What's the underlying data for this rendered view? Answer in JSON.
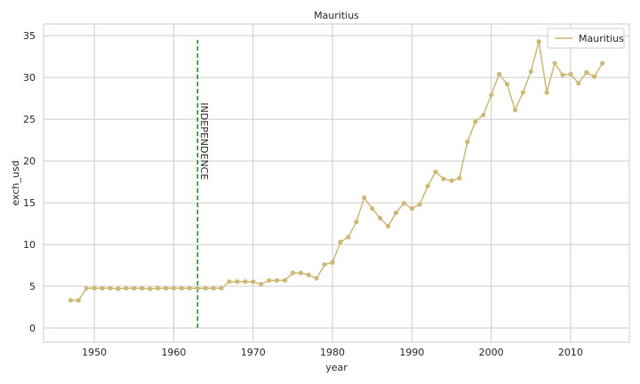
{
  "chart_data": {
    "type": "line",
    "title": "Mauritius",
    "xlabel": "year",
    "ylabel": "exch_usd",
    "xlim": [
      1943.6,
      2017.4
    ],
    "ylim": [
      -1.7,
      36.4
    ],
    "xticks": [
      1950,
      1960,
      1970,
      1980,
      1990,
      2000,
      2010
    ],
    "yticks": [
      0,
      5,
      10,
      15,
      20,
      25,
      30,
      35
    ],
    "grid": true,
    "legend": "top-right",
    "series": [
      {
        "name": "Mauritius",
        "color": "#ccb974",
        "marker": "circle",
        "x": [
          1947,
          1948,
          1949,
          1950,
          1951,
          1952,
          1953,
          1954,
          1955,
          1956,
          1957,
          1958,
          1959,
          1960,
          1961,
          1962,
          1963,
          1964,
          1965,
          1966,
          1967,
          1968,
          1969,
          1970,
          1971,
          1972,
          1973,
          1974,
          1975,
          1976,
          1977,
          1978,
          1979,
          1980,
          1981,
          1982,
          1983,
          1984,
          1985,
          1986,
          1987,
          1988,
          1989,
          1990,
          1991,
          1992,
          1993,
          1994,
          1995,
          1996,
          1997,
          1998,
          1999,
          2000,
          2001,
          2002,
          2003,
          2004,
          2005,
          2006,
          2007,
          2008,
          2009,
          2010,
          2011,
          2012,
          2013,
          2014
        ],
        "values": [
          3.32,
          3.32,
          4.76,
          4.76,
          4.76,
          4.76,
          4.71,
          4.76,
          4.76,
          4.76,
          4.7,
          4.76,
          4.76,
          4.76,
          4.76,
          4.76,
          4.76,
          4.76,
          4.76,
          4.76,
          5.55,
          5.55,
          5.55,
          5.55,
          5.25,
          5.7,
          5.7,
          5.7,
          6.6,
          6.6,
          6.35,
          5.95,
          7.6,
          7.85,
          10.3,
          10.87,
          12.7,
          15.6,
          14.3,
          13.15,
          12.2,
          13.8,
          14.95,
          14.3,
          14.8,
          17.0,
          18.7,
          17.85,
          17.65,
          17.95,
          22.3,
          24.7,
          25.5,
          27.9,
          30.4,
          29.2,
          26.1,
          28.2,
          30.7,
          34.3,
          28.2,
          31.7,
          30.3,
          30.4,
          29.3,
          30.6,
          30.1,
          31.7
        ]
      }
    ],
    "vline": {
      "x": 1963,
      "ymin": 0,
      "ymax": 34.5,
      "color": "#228b22",
      "label": "INDEPENDENCE"
    }
  }
}
